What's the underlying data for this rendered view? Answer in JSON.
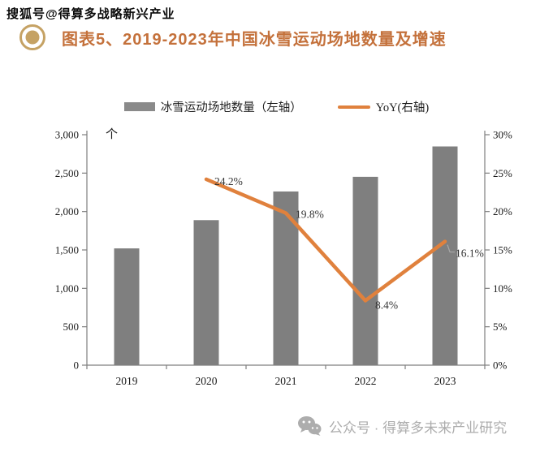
{
  "watermarks": {
    "top": "搜狐号@得算多战略新兴产业",
    "bottom": "公众号 · 得算多未来产业研究"
  },
  "header": {
    "title": "图表5、2019-2023年中国冰雪运动场地数量及增速"
  },
  "legend": {
    "bars_label": "冰雪运动场地数量（左轴）",
    "line_label": "YoY(右轴)"
  },
  "colors": {
    "bar": "#7f7f7f",
    "line": "#e0813d",
    "title": "#c4713b",
    "axis": "#7f7f7f",
    "bullet": "#c5a264",
    "watermark_bottom": "#adadad",
    "tick_text": "#1a1a1a",
    "data_label_text": "#333333",
    "leader_line": "#a8a8a8"
  },
  "chart_data": {
    "type": "bar",
    "title": "2019-2023年中国冰雪运动场地数量及增速",
    "categories": [
      "2019",
      "2020",
      "2021",
      "2022",
      "2023"
    ],
    "series": [
      {
        "name": "冰雪运动场地数量（左轴）",
        "type": "bar",
        "axis": "left",
        "values": [
          1520,
          1888,
          2261,
          2452,
          2847
        ]
      },
      {
        "name": "YoY(右轴)",
        "type": "line",
        "axis": "right",
        "values": [
          null,
          24.2,
          19.8,
          8.4,
          16.1
        ],
        "labels": [
          "",
          "24.2%",
          "19.8%",
          "8.4%",
          "16.1%"
        ]
      }
    ],
    "left_axis": {
      "unit": "个",
      "min": 0,
      "max": 3000,
      "ticks": [
        "3,000",
        "2,500",
        "2,000",
        "1,500",
        "1,000",
        "500",
        "0"
      ]
    },
    "right_axis": {
      "min": 0,
      "max": 30,
      "ticks": [
        "30%",
        "25%",
        "20%",
        "15%",
        "10%",
        "5%",
        "0%"
      ]
    },
    "grid": false,
    "legend_position": "top"
  }
}
